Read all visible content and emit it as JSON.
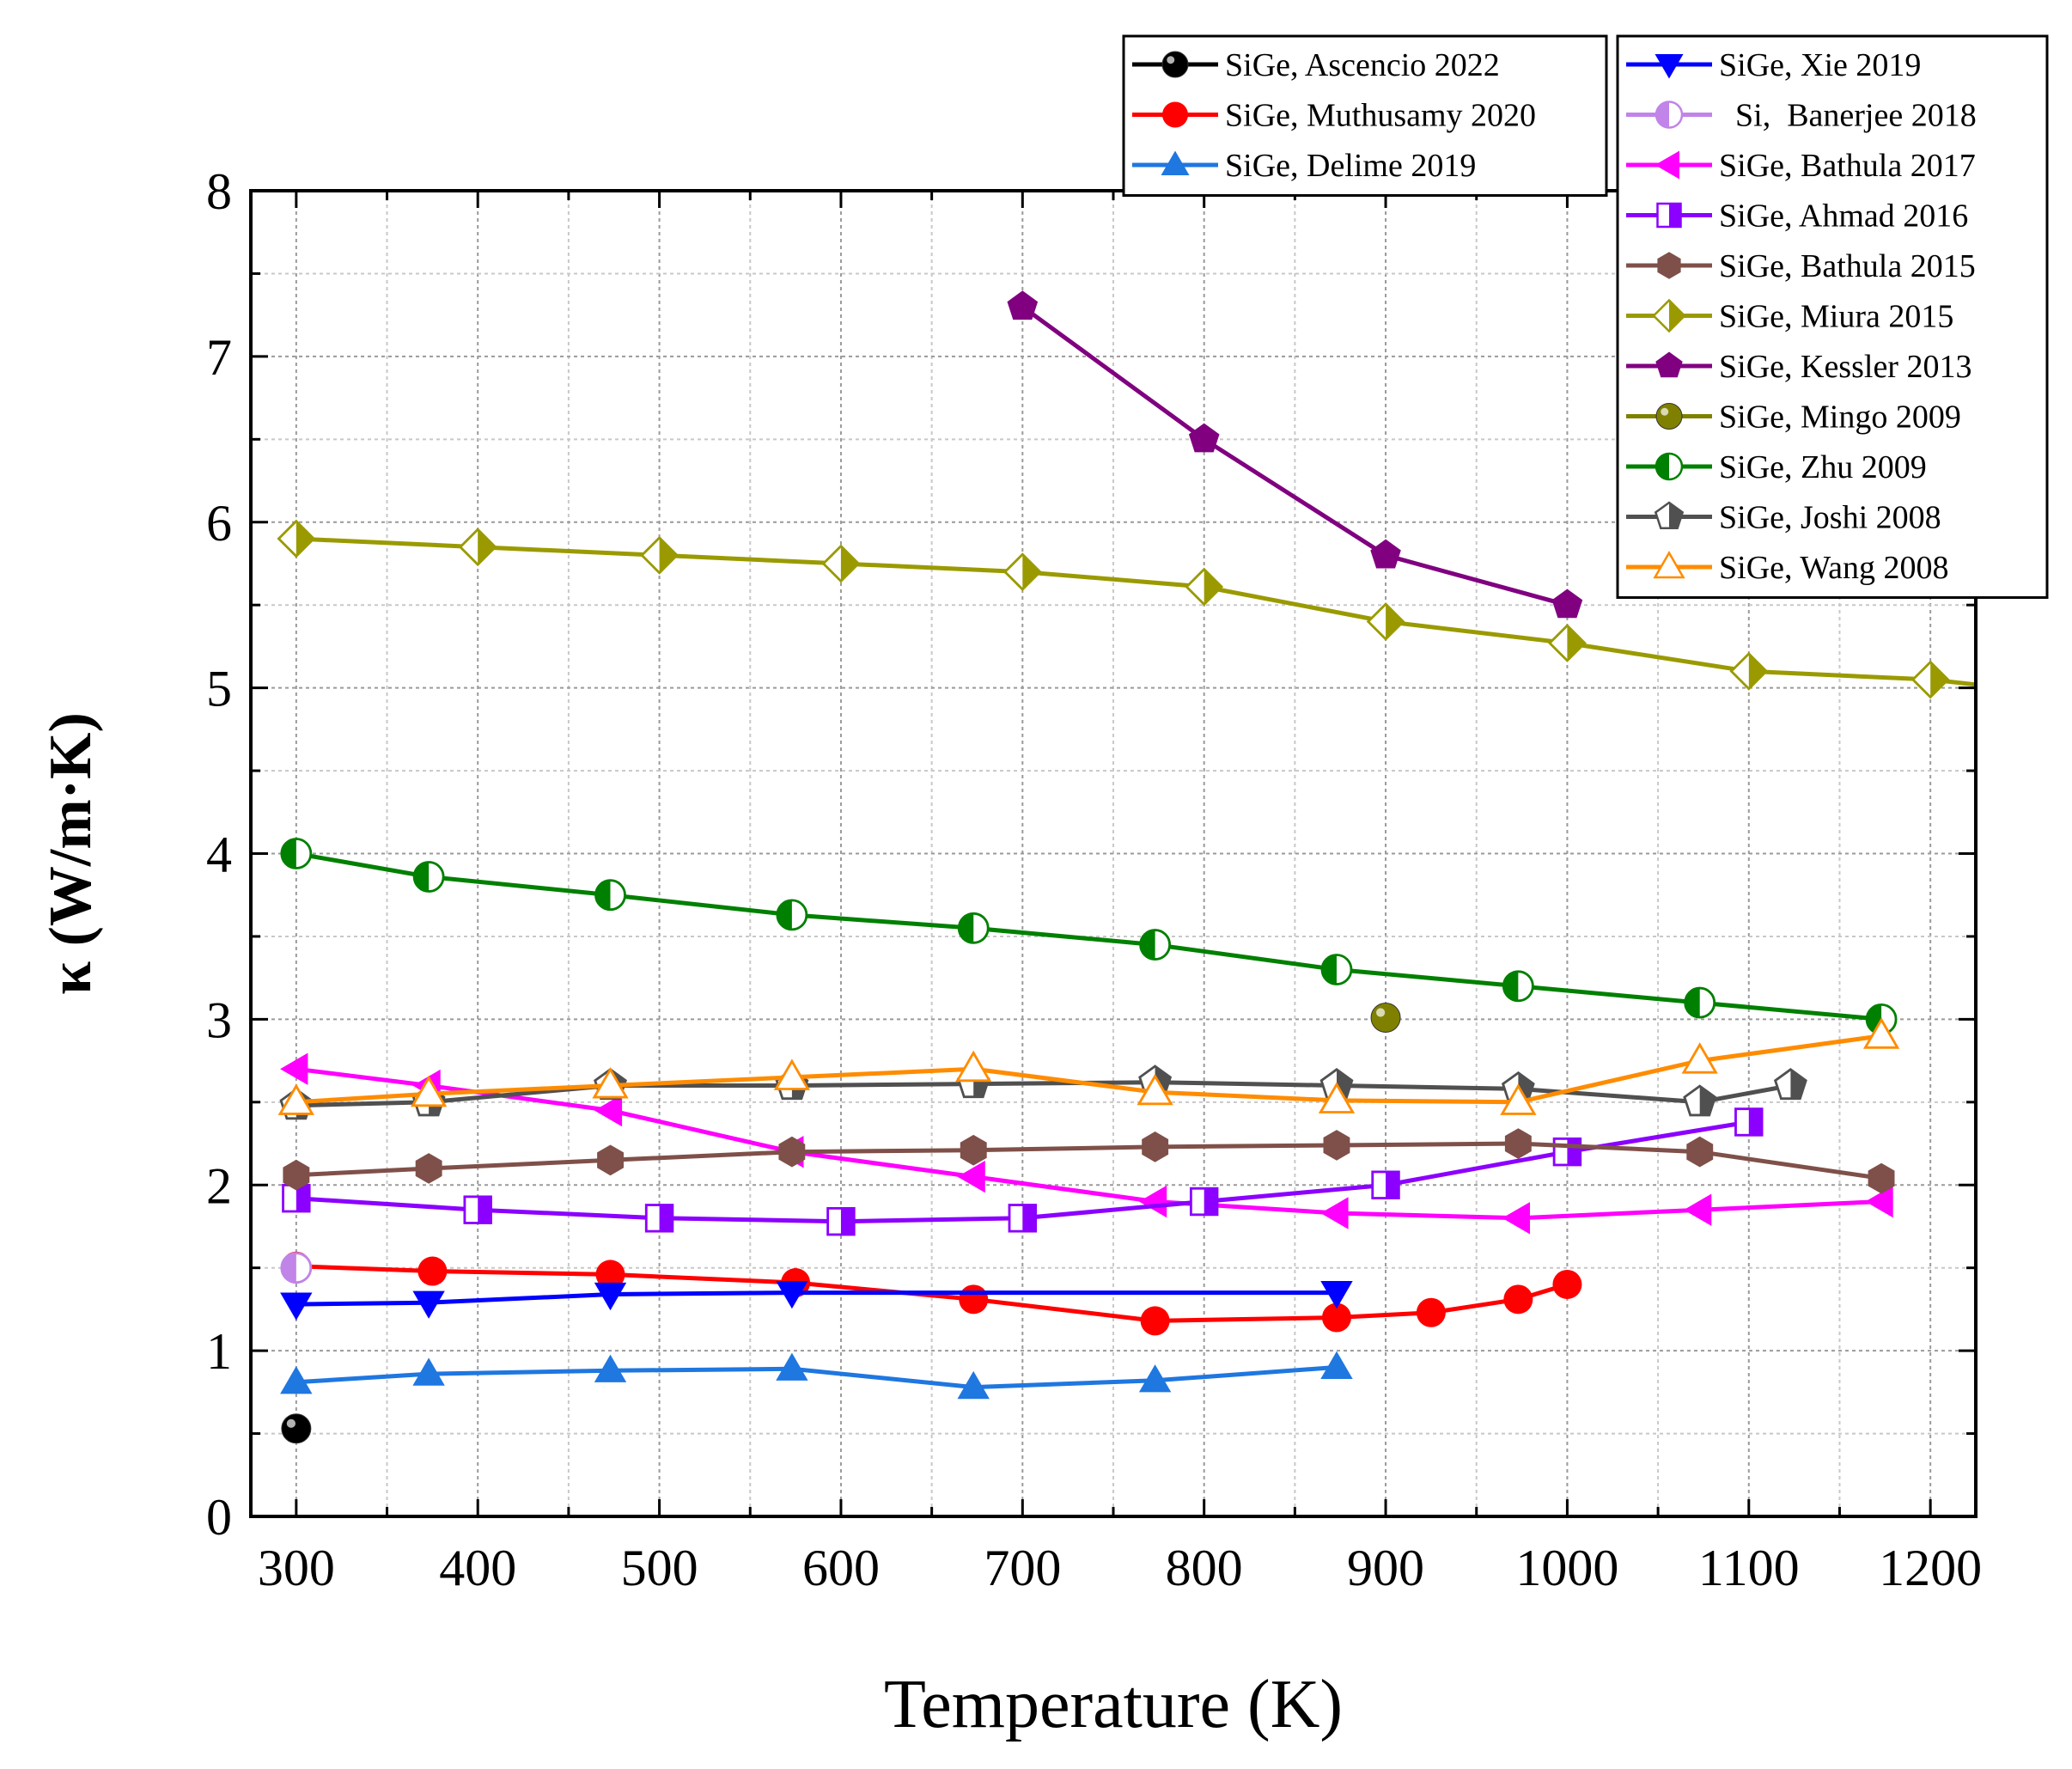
{
  "chart_data": {
    "type": "line",
    "title": "",
    "xlabel": "Temperature (K)",
    "ylabel": "κ (W/m·K)",
    "xlim": [
      275,
      1225
    ],
    "ylim": [
      0,
      8
    ],
    "xticks": [
      300,
      400,
      500,
      600,
      700,
      800,
      900,
      1000,
      1100,
      1200
    ],
    "yticks": [
      0,
      1,
      2,
      3,
      4,
      5,
      6,
      7,
      8
    ],
    "grid": true,
    "legend_position": "top-right",
    "series": [
      {
        "name": "SiGe, Ascencio 2022",
        "color": "#000000",
        "marker": "ball",
        "points": [
          [
            300,
            0.53
          ]
        ]
      },
      {
        "name": "SiGe, Muthusamy 2020",
        "color": "#ff0000",
        "marker": "circle",
        "points": [
          [
            300,
            1.51
          ],
          [
            375,
            1.48
          ],
          [
            473,
            1.46
          ],
          [
            575,
            1.41
          ],
          [
            673,
            1.31
          ],
          [
            773,
            1.18
          ],
          [
            873,
            1.2
          ],
          [
            925,
            1.23
          ],
          [
            973,
            1.31
          ],
          [
            1000,
            1.4
          ]
        ]
      },
      {
        "name": "SiGe, Delime 2019",
        "color": "#1f77e0",
        "marker": "triangle-up",
        "points": [
          [
            300,
            0.81
          ],
          [
            373,
            0.86
          ],
          [
            473,
            0.88
          ],
          [
            573,
            0.89
          ],
          [
            673,
            0.78
          ],
          [
            773,
            0.82
          ],
          [
            873,
            0.9
          ]
        ]
      },
      {
        "name": "SiGe, Xie 2019",
        "color": "#0000ff",
        "marker": "triangle-down",
        "points": [
          [
            300,
            1.28
          ],
          [
            373,
            1.29
          ],
          [
            473,
            1.34
          ],
          [
            573,
            1.35
          ],
          [
            873,
            1.35
          ]
        ]
      },
      {
        "name": "  Si,  Banerjee 2018",
        "color": "#c184e8",
        "marker": "half-circle",
        "points": [
          [
            300,
            1.5
          ]
        ]
      },
      {
        "name": "SiGe, Bathula 2017",
        "color": "#ff00ff",
        "marker": "triangle-left",
        "points": [
          [
            300,
            2.7
          ],
          [
            373,
            2.6
          ],
          [
            473,
            2.45
          ],
          [
            573,
            2.2
          ],
          [
            673,
            2.05
          ],
          [
            773,
            1.9
          ],
          [
            873,
            1.83
          ],
          [
            973,
            1.8
          ],
          [
            1073,
            1.85
          ],
          [
            1173,
            1.9
          ]
        ]
      },
      {
        "name": "SiGe, Ahmad 2016",
        "color": "#8b00ff",
        "marker": "half-square",
        "points": [
          [
            300,
            1.92
          ],
          [
            400,
            1.85
          ],
          [
            500,
            1.8
          ],
          [
            600,
            1.78
          ],
          [
            700,
            1.8
          ],
          [
            800,
            1.9
          ],
          [
            900,
            2.0
          ],
          [
            1000,
            2.2
          ],
          [
            1100,
            2.38
          ]
        ]
      },
      {
        "name": "SiGe, Bathula 2015",
        "color": "#7f5049",
        "marker": "hexagon",
        "points": [
          [
            300,
            2.06
          ],
          [
            373,
            2.1
          ],
          [
            473,
            2.15
          ],
          [
            573,
            2.2
          ],
          [
            673,
            2.21
          ],
          [
            773,
            2.23
          ],
          [
            873,
            2.24
          ],
          [
            973,
            2.25
          ],
          [
            1073,
            2.2
          ],
          [
            1173,
            2.04
          ]
        ]
      },
      {
        "name": "SiGe, Miura 2015",
        "color": "#9a9a00",
        "marker": "half-diamond",
        "points": [
          [
            300,
            5.9
          ],
          [
            400,
            5.85
          ],
          [
            500,
            5.8
          ],
          [
            600,
            5.75
          ],
          [
            700,
            5.7
          ],
          [
            800,
            5.61
          ],
          [
            900,
            5.4
          ],
          [
            1000,
            5.27
          ],
          [
            1100,
            5.1
          ],
          [
            1200,
            5.05
          ],
          [
            1225,
            5.02
          ]
        ]
      },
      {
        "name": "SiGe, Kessler 2013",
        "color": "#800080",
        "marker": "pentagon",
        "points": [
          [
            700,
            7.3
          ],
          [
            800,
            6.5
          ],
          [
            900,
            5.8
          ],
          [
            1000,
            5.5
          ]
        ]
      },
      {
        "name": "SiGe, Mingo 2009",
        "color": "#808000",
        "marker": "ball",
        "points": [
          [
            900,
            3.01
          ]
        ]
      },
      {
        "name": "SiGe, Zhu 2009",
        "color": "#008000",
        "marker": "half-circle",
        "points": [
          [
            300,
            4.0
          ],
          [
            373,
            3.86
          ],
          [
            473,
            3.75
          ],
          [
            573,
            3.63
          ],
          [
            673,
            3.55
          ],
          [
            773,
            3.45
          ],
          [
            873,
            3.3
          ],
          [
            973,
            3.2
          ],
          [
            1073,
            3.1
          ],
          [
            1173,
            3.0
          ]
        ]
      },
      {
        "name": "SiGe, Joshi 2008",
        "color": "#505050",
        "marker": "half-pentagon",
        "points": [
          [
            300,
            2.48
          ],
          [
            373,
            2.5
          ],
          [
            473,
            2.6
          ],
          [
            573,
            2.6
          ],
          [
            673,
            2.61
          ],
          [
            773,
            2.62
          ],
          [
            873,
            2.6
          ],
          [
            973,
            2.58
          ],
          [
            1073,
            2.5
          ],
          [
            1123,
            2.6
          ]
        ]
      },
      {
        "name": "SiGe, Wang 2008",
        "color": "#ff8c00",
        "marker": "open-triangle",
        "points": [
          [
            300,
            2.5
          ],
          [
            373,
            2.55
          ],
          [
            473,
            2.6
          ],
          [
            573,
            2.65
          ],
          [
            673,
            2.7
          ],
          [
            773,
            2.56
          ],
          [
            873,
            2.51
          ],
          [
            973,
            2.5
          ],
          [
            1073,
            2.75
          ],
          [
            1173,
            2.9
          ]
        ]
      }
    ]
  }
}
